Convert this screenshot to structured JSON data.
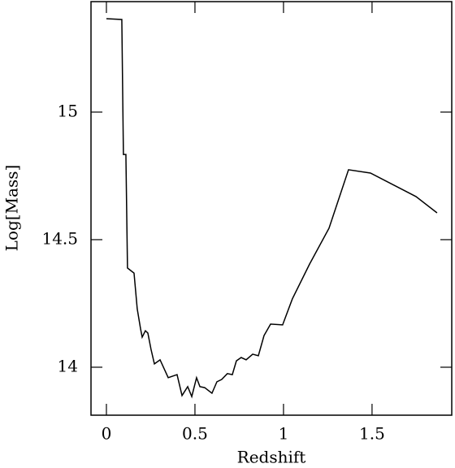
{
  "chart_data": {
    "type": "line",
    "xlabel": "Redshift",
    "ylabel": "Log[Mass]",
    "xlim": [
      -0.087,
      1.95
    ],
    "ylim": [
      13.812,
      15.433
    ],
    "xticks": [
      0,
      0.5,
      1,
      1.5
    ],
    "yticks": [
      14,
      14.5,
      15
    ],
    "color": "#000000",
    "x": [
      0,
      0.087,
      0.096,
      0.11,
      0.119,
      0.156,
      0.174,
      0.193,
      0.202,
      0.22,
      0.234,
      0.252,
      0.271,
      0.303,
      0.349,
      0.399,
      0.427,
      0.459,
      0.482,
      0.509,
      0.528,
      0.555,
      0.596,
      0.624,
      0.651,
      0.683,
      0.711,
      0.734,
      0.761,
      0.789,
      0.826,
      0.858,
      0.89,
      0.927,
      0.995,
      1.05,
      1.147,
      1.257,
      1.367,
      1.491,
      1.748,
      1.867
    ],
    "values": [
      15.366,
      15.363,
      14.834,
      14.834,
      14.389,
      14.369,
      14.229,
      14.15,
      14.118,
      14.143,
      14.134,
      14.07,
      14.013,
      14.029,
      13.959,
      13.971,
      13.889,
      13.924,
      13.885,
      13.959,
      13.924,
      13.92,
      13.898,
      13.943,
      13.952,
      13.975,
      13.971,
      14.025,
      14.038,
      14.029,
      14.051,
      14.045,
      14.124,
      14.169,
      14.166,
      14.268,
      14.404,
      14.545,
      14.774,
      14.761,
      14.669,
      14.605
    ]
  }
}
